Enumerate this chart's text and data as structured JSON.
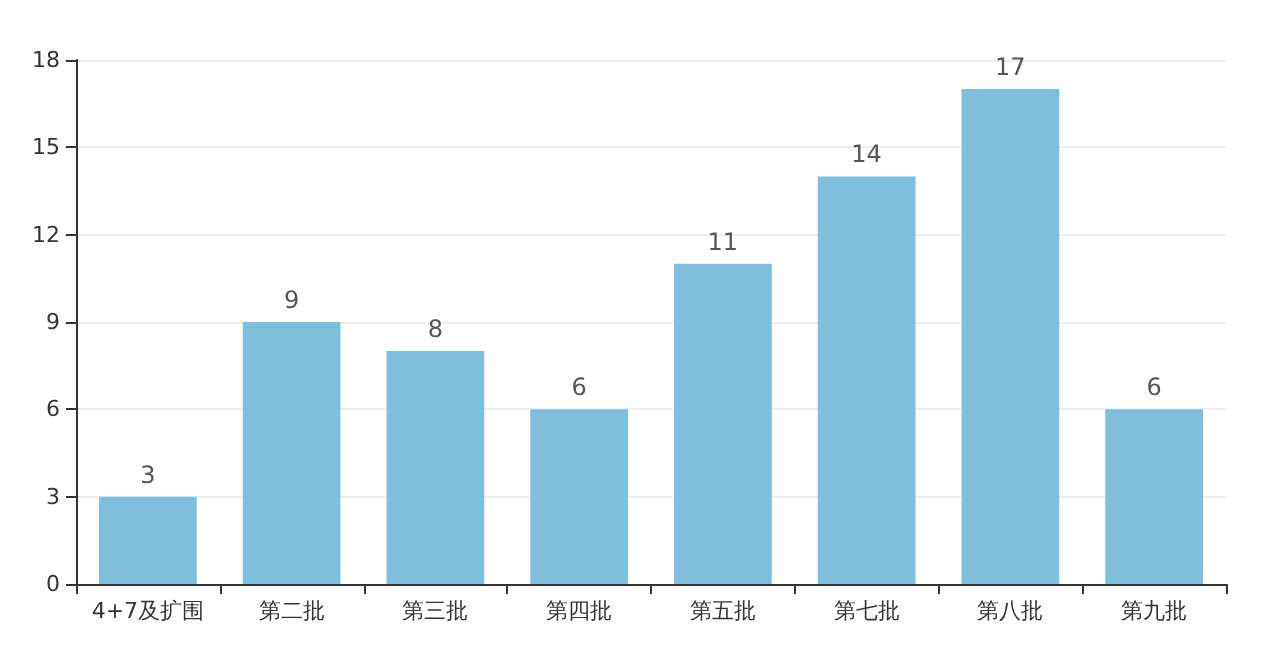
{
  "chart_data": {
    "type": "bar",
    "categories": [
      "4+7及扩围",
      "第二批",
      "第三批",
      "第四批",
      "第五批",
      "第七批",
      "第八批",
      "第九批"
    ],
    "values": [
      3,
      9,
      8,
      6,
      11,
      14,
      17,
      6
    ],
    "color": "#7fbfdc",
    "ylim": [
      0,
      18
    ],
    "yticks": [
      0,
      3,
      6,
      9,
      12,
      15,
      18
    ],
    "grid": "y",
    "data_labels": true
  }
}
